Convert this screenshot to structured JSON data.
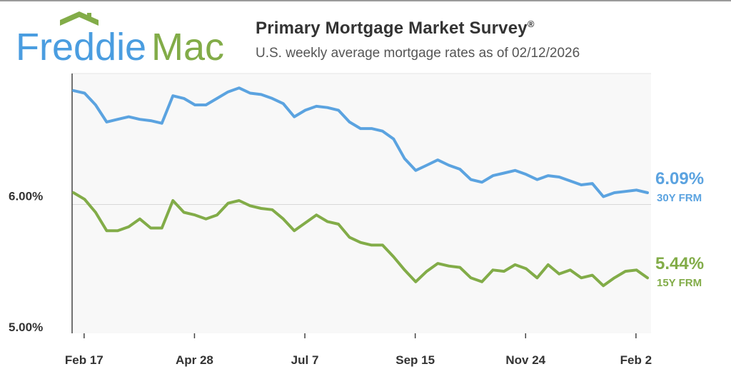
{
  "header": {
    "logo_text_1": "Freddie",
    "logo_text_2": "Mac",
    "title": "Primary Mortgage Market Survey",
    "title_mark": "®",
    "subtitle": "U.S. weekly average mortgage rates as of 02/12/2026"
  },
  "colors": {
    "blue": "#5ba3e0",
    "green": "#82ac48",
    "axis_text": "#333333",
    "plot_bg": "#f8f8f8"
  },
  "chart_data": {
    "type": "line",
    "title": "Primary Mortgage Market Survey",
    "ylim": [
      5.0,
      7.0
    ],
    "yticks": [
      {
        "value": 6.0,
        "label": "6.00%"
      },
      {
        "value": 5.0,
        "label": "5.00%"
      }
    ],
    "xticks": [
      {
        "index": 0.57,
        "label": "Feb 17"
      },
      {
        "index": 10.57,
        "label": "Apr 28"
      },
      {
        "index": 20.57,
        "label": "Jul 7"
      },
      {
        "index": 30.57,
        "label": "Sep 15"
      },
      {
        "index": 40.57,
        "label": "Nov 24"
      },
      {
        "index": 50.57,
        "label": "Feb 2"
      }
    ],
    "series": [
      {
        "name": "30Y FRM",
        "color": "#5ba3e0",
        "last_label": "6.09%",
        "values": [
          6.87,
          6.85,
          6.76,
          6.63,
          6.65,
          6.67,
          6.65,
          6.64,
          6.62,
          6.83,
          6.81,
          6.76,
          6.76,
          6.81,
          6.86,
          6.89,
          6.85,
          6.84,
          6.81,
          6.77,
          6.67,
          6.72,
          6.75,
          6.74,
          6.72,
          6.63,
          6.58,
          6.58,
          6.56,
          6.5,
          6.35,
          6.26,
          6.3,
          6.34,
          6.3,
          6.27,
          6.19,
          6.17,
          6.22,
          6.24,
          6.26,
          6.23,
          6.19,
          6.22,
          6.21,
          6.18,
          6.15,
          6.16,
          6.06,
          6.09,
          6.1,
          6.11,
          6.09
        ]
      },
      {
        "name": "15Y FRM",
        "color": "#82ac48",
        "last_label": "5.44%",
        "values": [
          6.09,
          6.04,
          5.94,
          5.8,
          5.8,
          5.83,
          5.89,
          5.82,
          5.82,
          6.03,
          5.94,
          5.92,
          5.89,
          5.92,
          6.01,
          6.03,
          5.99,
          5.97,
          5.96,
          5.89,
          5.8,
          5.86,
          5.92,
          5.87,
          5.85,
          5.75,
          5.71,
          5.69,
          5.69,
          5.6,
          5.5,
          5.41,
          5.49,
          5.55,
          5.53,
          5.52,
          5.44,
          5.41,
          5.5,
          5.49,
          5.54,
          5.51,
          5.44,
          5.54,
          5.47,
          5.5,
          5.44,
          5.46,
          5.38,
          5.44,
          5.49,
          5.5,
          5.44
        ]
      }
    ]
  }
}
